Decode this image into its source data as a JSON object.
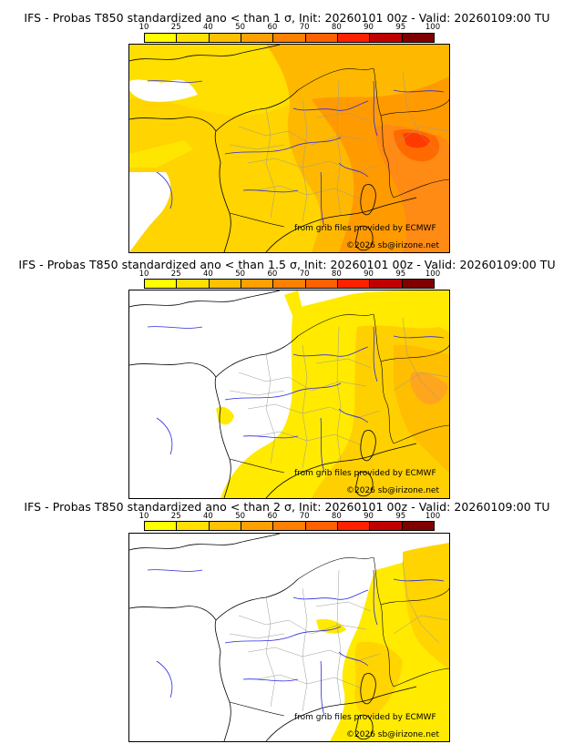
{
  "colorbar": {
    "ticks": [
      "10",
      "25",
      "40",
      "50",
      "60",
      "70",
      "80",
      "90",
      "95",
      "100"
    ],
    "colors": [
      "#ffff00",
      "#ffe000",
      "#ffc000",
      "#ffa000",
      "#ff8000",
      "#ff6000",
      "#ff2000",
      "#c00000",
      "#800000"
    ]
  },
  "panels": [
    {
      "title": "IFS - Probas T850  standardized ano < than 1 σ, Init: 20260101 00z - Valid: 20260109:00 TU",
      "credit_source": "from grib files provided by ECMWF",
      "credit_copyright": "©2026 sb@irizone.net"
    },
    {
      "title": "IFS - Probas T850  standardized ano < than 1.5 σ, Init: 20260101 00z - Valid: 20260109:00 TU",
      "credit_source": "from grib files provided by ECMWF",
      "credit_copyright": "©2026 sb@irizone.net"
    },
    {
      "title": "IFS - Probas T850  standardized ano < than 2 σ, Init: 20260101 00z - Valid: 20260109:00 TU",
      "credit_source": "from grib files provided by ECMWF",
      "credit_copyright": "©2026 sb@irizone.net"
    }
  ]
}
